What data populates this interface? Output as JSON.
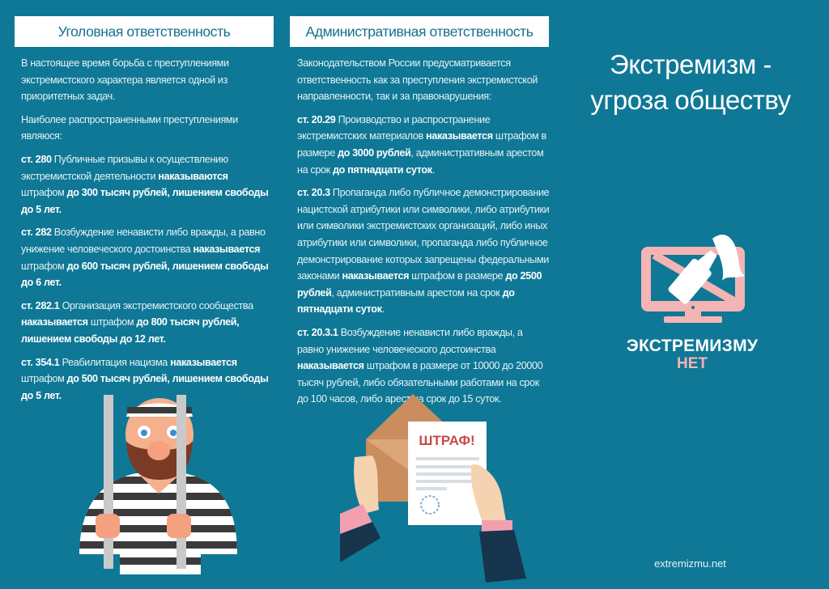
{
  "colors": {
    "background": "#0f7896",
    "header_text": "#15708e",
    "logo_pink": "#f4b4b4"
  },
  "criminal": {
    "title": "Уголовная ответственность",
    "paragraphs": [
      [
        {
          "t": "В настоящее время борьба с преступлениями экстремистского характера является одной из приоритетных задач."
        }
      ],
      [
        {
          "t": "Наиболее распространенными преступлениями являюся:"
        }
      ],
      [
        {
          "t": "ст. 280",
          "b": true
        },
        {
          "t": " Публичные призывы к осуществлению экстремистской деятельности "
        },
        {
          "t": "наказываются",
          "b": true
        },
        {
          "t": " штрафом "
        },
        {
          "t": "до 300 тысяч рублей, лишением свободы до 5 лет.",
          "b": true
        }
      ],
      [
        {
          "t": "ст. 282",
          "b": true
        },
        {
          "t": " Возбуждение ненависти либо вражды, а равно унижение человеческого достоинства "
        },
        {
          "t": "наказывается",
          "b": true
        },
        {
          "t": " штрафом "
        },
        {
          "t": "до 600 тысяч рублей, лишением свободы до 6 лет.",
          "b": true
        }
      ],
      [
        {
          "t": "ст. 282.1",
          "b": true
        },
        {
          "t": " Организация экстремистского сообщества "
        },
        {
          "t": "наказывается",
          "b": true
        },
        {
          "t": " штрафом "
        },
        {
          "t": "до 800 тысяч рублей, лишением свободы до 12 лет.",
          "b": true
        }
      ],
      [
        {
          "t": "ст. 354.1",
          "b": true
        },
        {
          "t": " Реабилитация нацизма "
        },
        {
          "t": "наказывается",
          "b": true
        },
        {
          "t": " штрафом "
        },
        {
          "t": "до 500 тысяч рублей, лишением свободы до 5 лет.",
          "b": true
        }
      ]
    ]
  },
  "administrative": {
    "title": "Административная ответственность",
    "paragraphs": [
      [
        {
          "t": "Законодательством России предусматривается ответственность как за преступления экстремистской направленности, так и за правонарушения:"
        }
      ],
      [
        {
          "t": "ст. 20.29",
          "b": true
        },
        {
          "t": " Производство и распространение экстремистских материалов "
        },
        {
          "t": "наказывается",
          "b": true
        },
        {
          "t": " штрафом в размере "
        },
        {
          "t": "до 3000 рублей",
          "b": true
        },
        {
          "t": ", административным арестом на срок "
        },
        {
          "t": "до пятнадцати суток",
          "b": true
        },
        {
          "t": "."
        }
      ],
      [
        {
          "t": "ст. 20.3",
          "b": true
        },
        {
          "t": " Пропаганда либо публичное демонстрирование нацистской атрибутики или символики, либо атрибутики или символики экстремистских организаций, либо иных атрибутики или символики, пропаганда либо публичное демонстрирование которых запрещены федеральными законами "
        },
        {
          "t": "наказывается",
          "b": true
        },
        {
          "t": " штрафом в размере "
        },
        {
          "t": "до 2500 рублей",
          "b": true
        },
        {
          "t": ", административным арестом на срок "
        },
        {
          "t": "до пятнадцати суток",
          "b": true
        },
        {
          "t": "."
        }
      ],
      [
        {
          "t": "ст. 20.3.1",
          "b": true
        },
        {
          "t": " Возбуждение ненависти либо вражды, а равно унижение человеческого достоинства "
        },
        {
          "t": "наказывается",
          "b": true
        },
        {
          "t": " штрафом в размере от 10000 до 20000 тысяч рублей, либо обязательными работами на срок до 100 часов, либо арест на срок до 15 суток."
        }
      ]
    ]
  },
  "cover": {
    "title_line1": "Экстремизм -",
    "title_line2": "угроза обществу",
    "logo_line1": "ЭКСТРЕМИЗМУ",
    "logo_line2": "НЕТ",
    "fine_paper_label": "ШТРАФ!",
    "website": "extremizmu.net"
  },
  "icons": [
    "prisoner-illustration",
    "fine-letter-illustration",
    "tv-bottle-logo-icon"
  ]
}
